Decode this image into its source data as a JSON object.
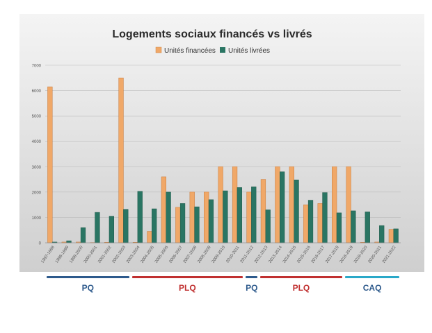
{
  "chart_data": {
    "type": "bar",
    "title": "Logements sociaux financés vs livrés",
    "categories": [
      "1997-1998",
      "1998-1999",
      "1999-2000",
      "2000-2001",
      "2001-2002",
      "2002-2003",
      "2003-2004",
      "2004-2005",
      "2005-2006",
      "2006-2007",
      "2007-2008",
      "2008-2009",
      "2009-2010",
      "2010-2011",
      "2011-2012",
      "2012-2013",
      "2013-2014",
      "2014-2015",
      "2015-2016",
      "2016-2017",
      "2017-2018",
      "2018-2019",
      "2019-2020",
      "2020-2021",
      "2021-2022"
    ],
    "series": [
      {
        "name": "Unités financées",
        "color": "#f0a868",
        "values": [
          6150,
          30,
          30,
          10,
          20,
          6500,
          20,
          450,
          2600,
          1400,
          2000,
          2000,
          3000,
          3000,
          2000,
          2500,
          3000,
          3000,
          1500,
          1550,
          3000,
          3000,
          20,
          30,
          530
        ]
      },
      {
        "name": "Unités livrées",
        "color": "#2a7563",
        "values": [
          30,
          80,
          600,
          1200,
          1050,
          1320,
          2030,
          1340,
          2000,
          1550,
          1420,
          1700,
          2050,
          2180,
          2210,
          1300,
          2800,
          2480,
          1680,
          1980,
          1180,
          1260,
          1220,
          680,
          550
        ]
      }
    ],
    "ylim": [
      0,
      7000
    ],
    "yticks": [
      "0",
      "1000",
      "2000",
      "3000",
      "4000",
      "5000",
      "6000",
      "7000"
    ],
    "grid": true,
    "legend": "top-center"
  },
  "parties": [
    {
      "label": "PQ",
      "color": "#2e5a8c",
      "from": 0,
      "to": 5
    },
    {
      "label": "PLQ",
      "color": "#c03030",
      "from": 6,
      "to": 13
    },
    {
      "label": "PQ",
      "color": "#2e5a8c",
      "from": 14,
      "to": 14
    },
    {
      "label": "PLQ",
      "color": "#c03030",
      "from": 15,
      "to": 20
    },
    {
      "label": "CAQ",
      "color": "#2aa8c8",
      "from": 21,
      "to": 24
    }
  ]
}
